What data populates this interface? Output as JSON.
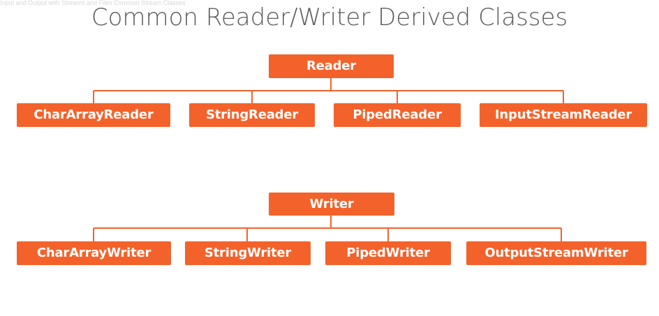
{
  "watermark_text": "Input and Output with Streams and Files   Common Stream Classes",
  "title": "Common Reader/Writer Derived Classes",
  "colors": {
    "node_fill": "#f4622b",
    "node_text": "#ffffff",
    "connector": "#f4622b",
    "title_text": "#5a5a5a"
  },
  "reader_tree": {
    "root": "Reader",
    "children": [
      "CharArrayReader",
      "StringReader",
      "PipedReader",
      "InputStreamReader"
    ]
  },
  "writer_tree": {
    "root": "Writer",
    "children": [
      "CharArrayWriter",
      "StringWriter",
      "PipedWriter",
      "OutputStreamWriter"
    ]
  }
}
